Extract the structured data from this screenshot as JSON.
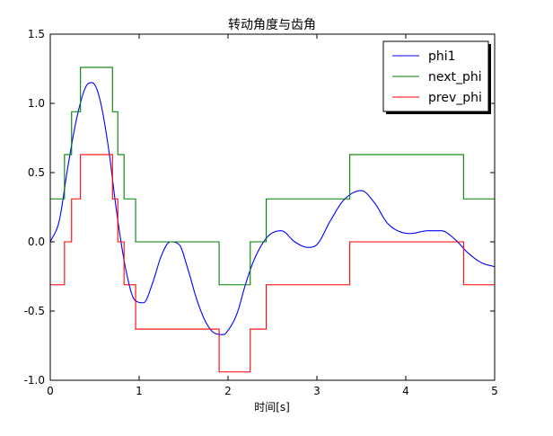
{
  "chart_data": {
    "type": "line",
    "title": "转动角度与齿角",
    "xlabel": "时间[s]",
    "ylabel": "",
    "xlim": [
      0,
      5
    ],
    "ylim": [
      -1.0,
      1.5
    ],
    "x_ticks": [
      "0",
      "1",
      "2",
      "3",
      "4",
      "5"
    ],
    "y_ticks": [
      "-1.0",
      "-0.5",
      "0.0",
      "0.5",
      "1.0",
      "1.5"
    ],
    "grid": false,
    "legend_position": "top-right",
    "series": [
      {
        "name": "phi1",
        "color": "#0000ff",
        "style": "line",
        "x": [
          0,
          0.1,
          0.2,
          0.3,
          0.4,
          0.47,
          0.55,
          0.65,
          0.75,
          0.85,
          0.95,
          1.05,
          1.15,
          1.25,
          1.35,
          1.45,
          1.55,
          1.65,
          1.75,
          1.85,
          1.95,
          2.0,
          2.1,
          2.2,
          2.3,
          2.45,
          2.6,
          2.75,
          2.9,
          3.0,
          3.15,
          3.3,
          3.5,
          3.65,
          3.8,
          4.05,
          4.25,
          4.4,
          4.55,
          4.7,
          4.85,
          5.0
        ],
        "y": [
          0.0,
          0.15,
          0.55,
          0.9,
          1.12,
          1.15,
          1.05,
          0.7,
          0.2,
          -0.2,
          -0.42,
          -0.44,
          -0.3,
          -0.1,
          0.0,
          -0.02,
          -0.2,
          -0.42,
          -0.58,
          -0.66,
          -0.67,
          -0.64,
          -0.52,
          -0.3,
          -0.12,
          0.04,
          0.08,
          0.0,
          -0.04,
          -0.02,
          0.15,
          0.3,
          0.37,
          0.28,
          0.13,
          0.06,
          0.08,
          0.08,
          0.02,
          -0.08,
          -0.15,
          -0.18
        ]
      },
      {
        "name": "next_phi",
        "color": "#008000",
        "style": "step",
        "x": [
          0,
          0.16,
          0.16,
          0.24,
          0.24,
          0.34,
          0.34,
          0.7,
          0.7,
          0.76,
          0.76,
          0.83,
          0.83,
          0.96,
          0.96,
          1.9,
          1.9,
          2.25,
          2.25,
          2.43,
          2.43,
          3.37,
          3.37,
          4.65,
          4.65,
          5.0
        ],
        "y": [
          0.31,
          0.31,
          0.63,
          0.63,
          0.94,
          0.94,
          1.26,
          1.26,
          0.94,
          0.94,
          0.63,
          0.63,
          0.31,
          0.31,
          0.0,
          0.0,
          -0.31,
          -0.31,
          0.0,
          0.0,
          0.31,
          0.31,
          0.63,
          0.63,
          0.31,
          0.31
        ]
      },
      {
        "name": "prev_phi",
        "color": "#ff0000",
        "style": "step",
        "x": [
          0,
          0.16,
          0.16,
          0.24,
          0.24,
          0.34,
          0.34,
          0.7,
          0.7,
          0.76,
          0.76,
          0.83,
          0.83,
          0.96,
          0.96,
          1.9,
          1.9,
          2.25,
          2.25,
          2.43,
          2.43,
          3.37,
          3.37,
          4.65,
          4.65,
          5.0
        ],
        "y": [
          -0.31,
          -0.31,
          0.0,
          0.0,
          0.31,
          0.31,
          0.63,
          0.63,
          0.31,
          0.31,
          0.0,
          0.0,
          -0.31,
          -0.31,
          -0.63,
          -0.63,
          -0.94,
          -0.94,
          -0.63,
          -0.63,
          -0.31,
          -0.31,
          0.0,
          0.0,
          -0.31,
          -0.31
        ]
      }
    ]
  }
}
